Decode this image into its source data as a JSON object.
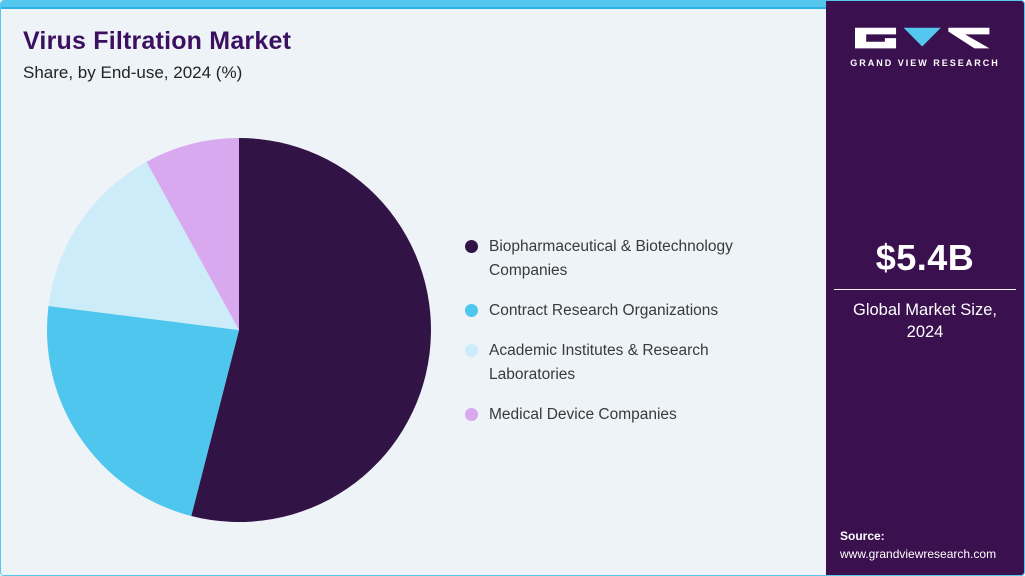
{
  "header": {
    "title": "Virus Filtration Market",
    "subtitle": "Share, by End-use, 2024 (%)"
  },
  "chart_data": {
    "type": "pie",
    "title": "Virus Filtration Market Share, by End-use, 2024 (%)",
    "labels": [
      "Biopharmaceutical & Biotechnology Companies",
      "Contract Research Organizations",
      "Academic Institutes & Research Laboratories",
      "Medical Device Companies"
    ],
    "values": [
      54,
      23,
      15,
      8
    ],
    "unit": "%",
    "colors": [
      "#321345",
      "#4fc6ee",
      "#cdecf9",
      "#d9a9f0"
    ],
    "start_angle_deg": 0,
    "direction": "clockwise",
    "legend_position": "right",
    "data_labels_shown": false
  },
  "sidebar": {
    "brand": "GRAND VIEW RESEARCH",
    "market_size_value": "$5.4B",
    "market_size_label": "Global Market Size, 2024",
    "source_label": "Source:",
    "source_url": "www.grandviewresearch.com"
  },
  "theme": {
    "accent_cyan": "#53c7ee",
    "dark_purple": "#3a104f",
    "title_purple": "#3c1060",
    "background": "#edf3f7"
  }
}
